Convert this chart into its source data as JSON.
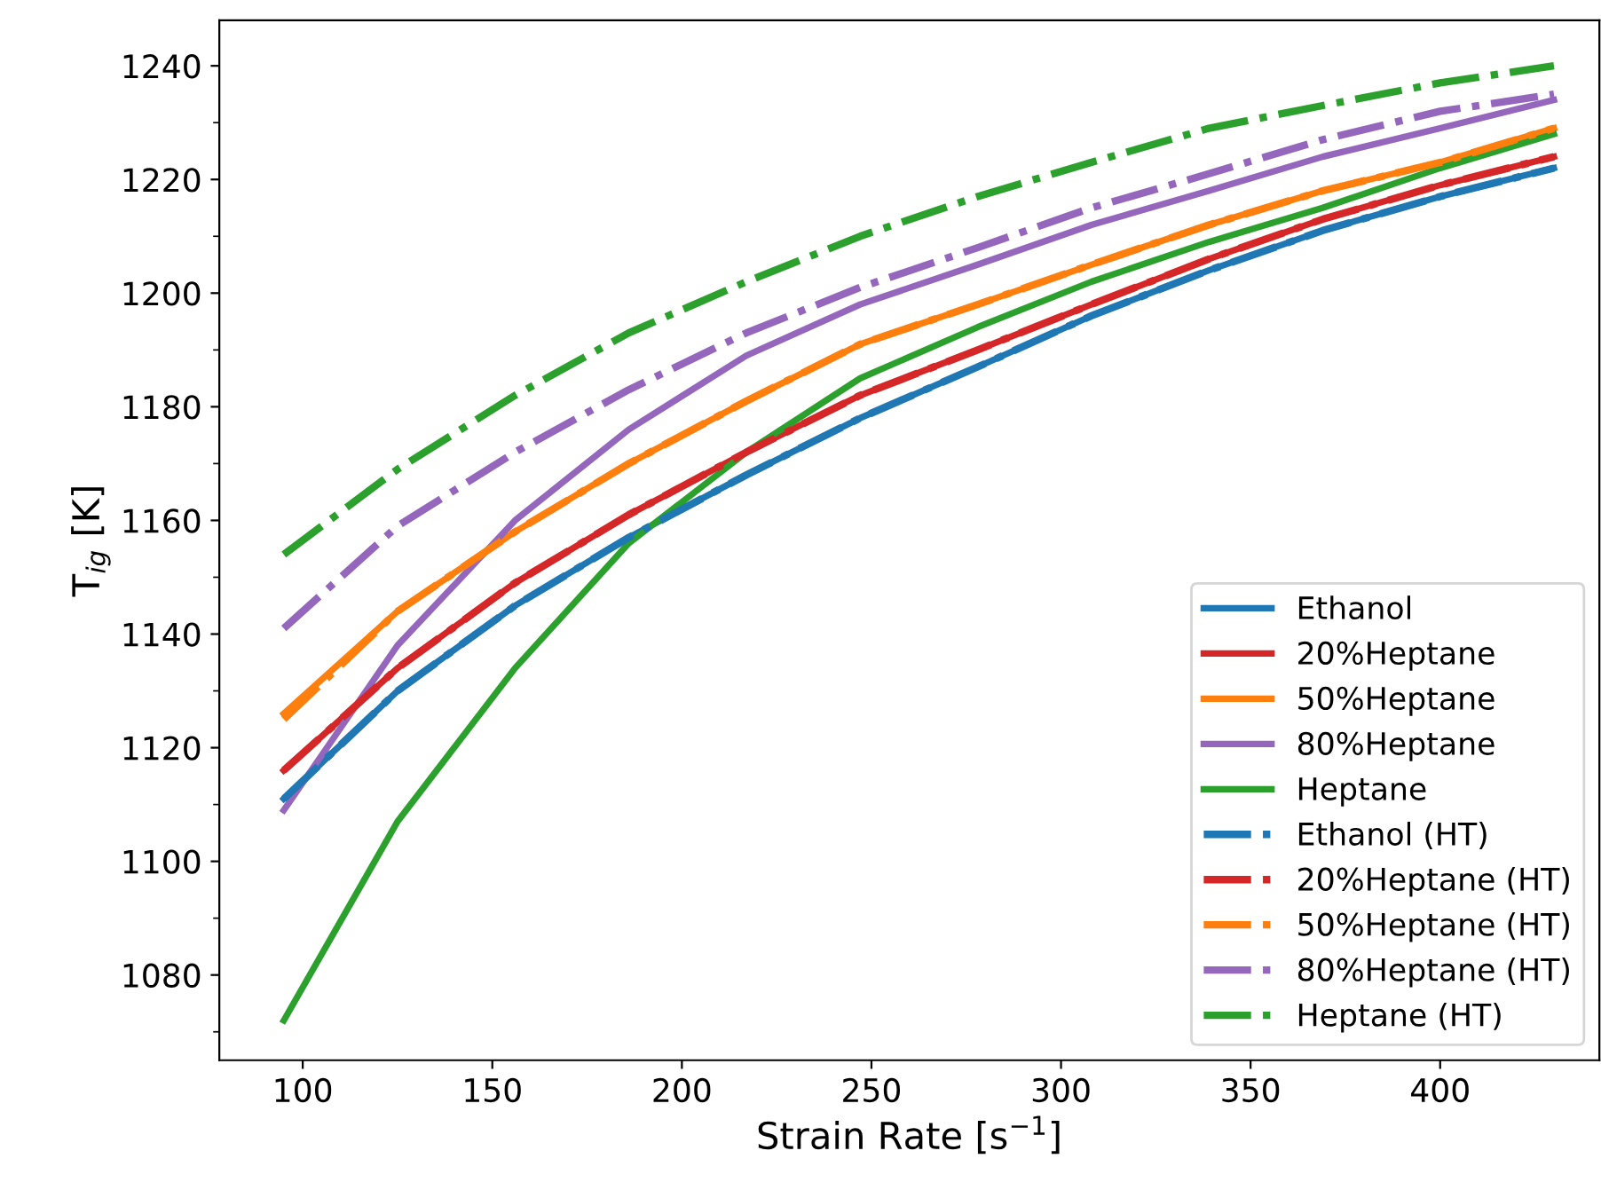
{
  "chart_data": {
    "type": "line",
    "xlabel": "Strain Rate [s$^{−1}$]",
    "ylabel": "T$_{ig}$ [K]",
    "x": [
      95,
      125,
      156,
      186,
      217,
      247,
      278,
      308,
      339,
      369,
      400,
      430
    ],
    "xlim": [
      78,
      442
    ],
    "xticks": [
      100,
      150,
      200,
      250,
      300,
      350,
      400
    ],
    "ylim": [
      1065,
      1248
    ],
    "yticks": [
      1080,
      {
        "value": 1090,
        "label": null
      },
      1100,
      {
        "value": 1110,
        "label": null
      },
      1120,
      {
        "value": 1130,
        "label": null
      },
      1140,
      {
        "value": 1150,
        "label": null
      },
      1160,
      {
        "value": 1170,
        "label": null
      },
      1180,
      {
        "value": 1190,
        "label": null
      },
      1200,
      {
        "value": 1210,
        "label": null
      },
      1220,
      {
        "value": 1230,
        "label": null
      },
      1240,
      {
        "value": 1070,
        "label": null
      }
    ],
    "grid": false,
    "legend": "bottom right",
    "marker": "none",
    "series": [
      {
        "name": "Ethanol",
        "color": "#1f77b4",
        "line_style": "solid",
        "values": [
          1111,
          1130,
          1145,
          1157,
          1168,
          1178,
          1187,
          1196,
          1204,
          1211,
          1217,
          1222
        ]
      },
      {
        "name": "20%Heptane",
        "color": "#d62728",
        "line_style": "solid",
        "values": [
          1116,
          1134,
          1149,
          1161,
          1172,
          1182,
          1190,
          1198,
          1206,
          1213,
          1219,
          1224
        ]
      },
      {
        "name": "50%Heptane",
        "color": "#ff7f0e",
        "line_style": "solid",
        "values": [
          1126,
          1144,
          1158,
          1170,
          1181,
          1191,
          1198,
          1205,
          1212,
          1218,
          1223,
          1229
        ]
      },
      {
        "name": "80%Heptane",
        "color": "#9467bd",
        "line_style": "solid",
        "values": [
          1109,
          1138,
          1160,
          1176,
          1189,
          1198,
          1205,
          1212,
          1218,
          1224,
          1229,
          1234
        ]
      },
      {
        "name": "Heptane",
        "color": "#2ca02c",
        "line_style": "solid",
        "values": [
          1072,
          1107,
          1134,
          1156,
          1172,
          1185,
          1194,
          1202,
          1209,
          1215,
          1222,
          1228
        ]
      },
      {
        "name": "Ethanol (HT)",
        "color": "#1f77b4",
        "line_style": "dashdot",
        "values": [
          1111,
          1130,
          1145,
          1157,
          1168,
          1178,
          1187,
          1196,
          1204,
          1211,
          1217,
          1222
        ]
      },
      {
        "name": "20%Heptane (HT)",
        "color": "#d62728",
        "line_style": "dashdot",
        "values": [
          1116,
          1134,
          1149,
          1161,
          1172,
          1182,
          1190,
          1198,
          1206,
          1213,
          1219,
          1224
        ]
      },
      {
        "name": "50%Heptane (HT)",
        "color": "#ff7f0e",
        "line_style": "dashdot",
        "values": [
          1125,
          1144,
          1158,
          1170,
          1181,
          1191,
          1198,
          1205,
          1212,
          1218,
          1223,
          1229
        ]
      },
      {
        "name": "80%Heptane (HT)",
        "color": "#9467bd",
        "line_style": "dashdot",
        "values": [
          1141,
          1159,
          1172,
          1183,
          1193,
          1201,
          1208,
          1215,
          1221,
          1227,
          1232,
          1235
        ]
      },
      {
        "name": "Heptane (HT)",
        "color": "#2ca02c",
        "line_style": "dashdot",
        "values": [
          1154,
          1169,
          1182,
          1193,
          1202,
          1210,
          1217,
          1223,
          1229,
          1233,
          1237,
          1240
        ]
      }
    ]
  }
}
